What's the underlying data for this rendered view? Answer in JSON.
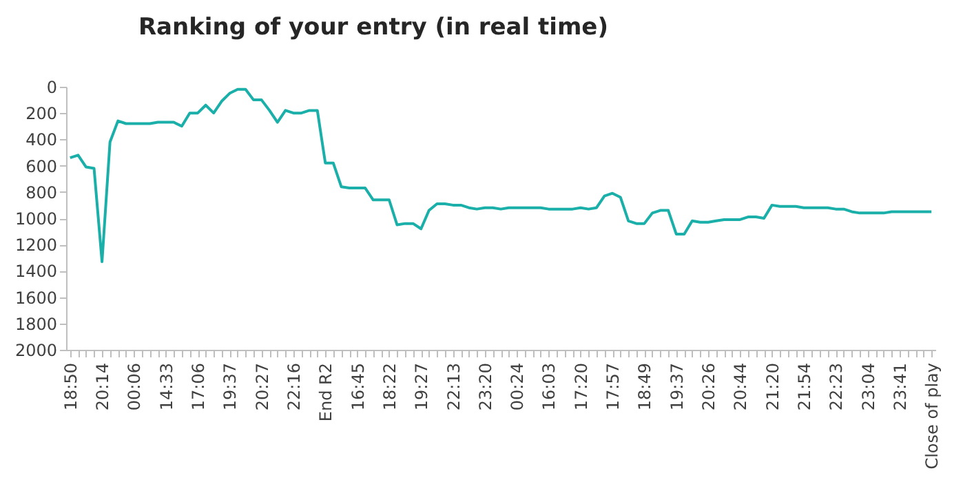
{
  "chart_data": {
    "type": "line",
    "title": "Ranking of your entry (in real time)",
    "categories": [
      "18:50",
      null,
      null,
      null,
      "20:14",
      null,
      null,
      null,
      "00:06",
      null,
      null,
      null,
      "14:33",
      null,
      null,
      null,
      "17:06",
      null,
      null,
      null,
      "19:37",
      null,
      null,
      null,
      "20:27",
      null,
      null,
      null,
      "22:16",
      null,
      null,
      null,
      "End R2",
      null,
      null,
      null,
      "16:45",
      null,
      null,
      null,
      "18:22",
      null,
      null,
      null,
      "19:27",
      null,
      null,
      null,
      "22:13",
      null,
      null,
      null,
      "23:20",
      null,
      null,
      null,
      "00:24",
      null,
      null,
      null,
      "16:03",
      null,
      null,
      null,
      "17:20",
      null,
      null,
      null,
      "17:57",
      null,
      null,
      null,
      "18:49",
      null,
      null,
      null,
      "19:37",
      null,
      null,
      null,
      "20:26",
      null,
      null,
      null,
      "20:44",
      null,
      null,
      null,
      "21:20",
      null,
      null,
      null,
      "21:54",
      null,
      null,
      null,
      "22:23",
      null,
      null,
      null,
      "23:04",
      null,
      null,
      null,
      "23:41",
      null,
      null,
      null,
      "Close of play"
    ],
    "series": [
      {
        "color": "#1aafa9",
        "values": [
          540,
          520,
          610,
          620,
          1330,
          420,
          260,
          280,
          280,
          280,
          280,
          270,
          270,
          270,
          300,
          200,
          200,
          140,
          200,
          110,
          50,
          20,
          20,
          100,
          100,
          180,
          270,
          180,
          200,
          200,
          180,
          180,
          580,
          580,
          760,
          770,
          770,
          770,
          860,
          860,
          860,
          1050,
          1040,
          1040,
          1080,
          940,
          890,
          890,
          900,
          900,
          920,
          930,
          920,
          920,
          930,
          920,
          920,
          920,
          920,
          920,
          930,
          930,
          930,
          930,
          920,
          930,
          920,
          830,
          810,
          840,
          1020,
          1040,
          1040,
          960,
          940,
          940,
          1120,
          1120,
          1020,
          1030,
          1030,
          1020,
          1010,
          1010,
          1010,
          990,
          990,
          1000,
          900,
          910,
          910,
          910,
          920,
          920,
          920,
          920,
          930,
          930,
          950,
          960,
          960,
          960,
          960,
          950,
          950,
          950,
          950,
          950,
          950
        ]
      }
    ],
    "ylim": [
      2000,
      0
    ],
    "yticks": [
      0,
      200,
      400,
      600,
      800,
      1000,
      1200,
      1400,
      1600,
      1800,
      2000
    ],
    "grid": false,
    "marker": "none",
    "line_style": "solid"
  }
}
